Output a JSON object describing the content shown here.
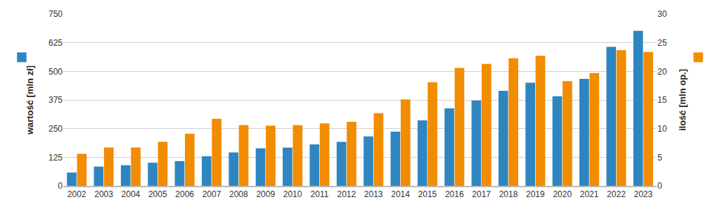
{
  "chart_data": {
    "type": "bar",
    "categories": [
      "2002",
      "2003",
      "2004",
      "2005",
      "2006",
      "2007",
      "2008",
      "2009",
      "2010",
      "2011",
      "2012",
      "2013",
      "2014",
      "2015",
      "2016",
      "2017",
      "2018",
      "2019",
      "2020",
      "2021",
      "2022",
      "2023"
    ],
    "series": [
      {
        "color": "#2e86c1",
        "axis": "y",
        "values": [
          58,
          84,
          90,
          101,
          108,
          129,
          146,
          164,
          167,
          181,
          192,
          216,
          237,
          286,
          338,
          373,
          415,
          450,
          391,
          467,
          607,
          677
        ]
      },
      {
        "color": "#f28c00",
        "axis": "y2",
        "values": [
          5.6,
          6.7,
          6.7,
          7.7,
          9.1,
          11.7,
          10.6,
          10.5,
          10.6,
          10.9,
          11.2,
          12.7,
          15.1,
          18.1,
          20.6,
          21.3,
          22.3,
          22.7,
          18.3,
          19.7,
          23.7,
          23.4
        ]
      }
    ],
    "y_label": "wartość [mln zł]",
    "y2_label": "ilość [mln op.]",
    "ylim": [
      0,
      750
    ],
    "yticks": [
      0,
      125,
      250,
      375,
      500,
      625,
      750
    ],
    "y2lim": [
      0,
      30
    ],
    "y2ticks": [
      0,
      5,
      10,
      15,
      20,
      25,
      30
    ],
    "grid": true
  }
}
